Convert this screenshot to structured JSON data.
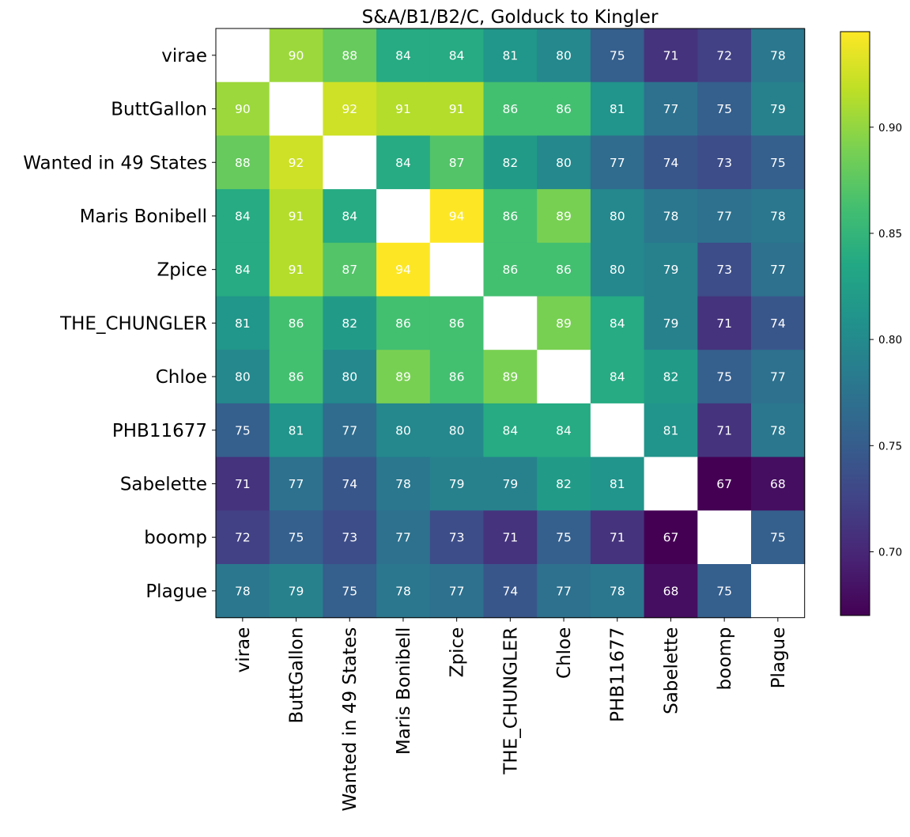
{
  "chart_data": {
    "type": "heatmap",
    "title": "S&A/B1/B2/C, Golduck to Kingler",
    "xlabel": "",
    "ylabel": "",
    "labels": [
      "virae",
      "ButtGallon",
      "Wanted in 49 States",
      "Maris Bonibell",
      "Zpice",
      "THE_CHUNGLER",
      "Chloe",
      "PHB11677",
      "Sabelette",
      "boomp",
      "Plague"
    ],
    "values": [
      [
        null,
        90,
        88,
        84,
        84,
        81,
        80,
        75,
        71,
        72,
        78
      ],
      [
        90,
        null,
        92,
        91,
        91,
        86,
        86,
        81,
        77,
        75,
        79
      ],
      [
        88,
        92,
        null,
        84,
        87,
        82,
        80,
        77,
        74,
        73,
        75
      ],
      [
        84,
        91,
        84,
        null,
        94,
        86,
        89,
        80,
        78,
        77,
        78
      ],
      [
        84,
        91,
        87,
        94,
        null,
        86,
        86,
        80,
        79,
        73,
        77
      ],
      [
        81,
        86,
        82,
        86,
        86,
        null,
        89,
        84,
        79,
        71,
        74
      ],
      [
        80,
        86,
        80,
        89,
        86,
        89,
        null,
        84,
        82,
        75,
        77
      ],
      [
        75,
        81,
        77,
        80,
        80,
        84,
        84,
        null,
        81,
        71,
        78
      ],
      [
        71,
        77,
        74,
        78,
        79,
        79,
        82,
        81,
        null,
        67,
        68
      ],
      [
        72,
        75,
        73,
        77,
        73,
        71,
        75,
        71,
        67,
        null,
        75
      ],
      [
        78,
        79,
        75,
        78,
        77,
        74,
        77,
        78,
        68,
        75,
        null
      ]
    ],
    "cell_values": [
      [
        null,
        0.904,
        0.88,
        0.838,
        0.838,
        0.813,
        0.798,
        0.752,
        0.71,
        0.722,
        0.779
      ],
      [
        0.904,
        null,
        0.925,
        0.914,
        0.914,
        0.862,
        0.862,
        0.811,
        0.772,
        0.752,
        0.79
      ],
      [
        0.88,
        0.925,
        null,
        0.838,
        0.87,
        0.82,
        0.798,
        0.767,
        0.743,
        0.734,
        0.752
      ],
      [
        0.838,
        0.914,
        0.838,
        null,
        0.945,
        0.862,
        0.889,
        0.798,
        0.779,
        0.772,
        0.779
      ],
      [
        0.838,
        0.914,
        0.87,
        0.945,
        null,
        0.862,
        0.862,
        0.798,
        0.79,
        0.734,
        0.772
      ],
      [
        0.813,
        0.862,
        0.82,
        0.862,
        0.862,
        null,
        0.889,
        0.838,
        0.79,
        0.71,
        0.743
      ],
      [
        0.798,
        0.862,
        0.798,
        0.889,
        0.862,
        0.889,
        null,
        0.838,
        0.82,
        0.752,
        0.772
      ],
      [
        0.752,
        0.811,
        0.767,
        0.798,
        0.798,
        0.838,
        0.838,
        null,
        0.811,
        0.71,
        0.779
      ],
      [
        0.71,
        0.772,
        0.743,
        0.779,
        0.79,
        0.79,
        0.82,
        0.811,
        null,
        0.67,
        0.68
      ],
      [
        0.722,
        0.752,
        0.734,
        0.772,
        0.734,
        0.71,
        0.752,
        0.71,
        0.67,
        null,
        0.752
      ],
      [
        0.779,
        0.79,
        0.752,
        0.779,
        0.772,
        0.743,
        0.772,
        0.779,
        0.68,
        0.752,
        null
      ]
    ],
    "colormap": "viridis",
    "color_range": [
      0.67,
      0.945
    ],
    "colorbar_ticks": [
      "0.70",
      "0.75",
      "0.80",
      "0.85",
      "0.90"
    ],
    "colorbar_tick_values": [
      0.7,
      0.75,
      0.8,
      0.85,
      0.9
    ],
    "diagonal": "blank",
    "grid": false,
    "legend": "colorbar-right"
  }
}
